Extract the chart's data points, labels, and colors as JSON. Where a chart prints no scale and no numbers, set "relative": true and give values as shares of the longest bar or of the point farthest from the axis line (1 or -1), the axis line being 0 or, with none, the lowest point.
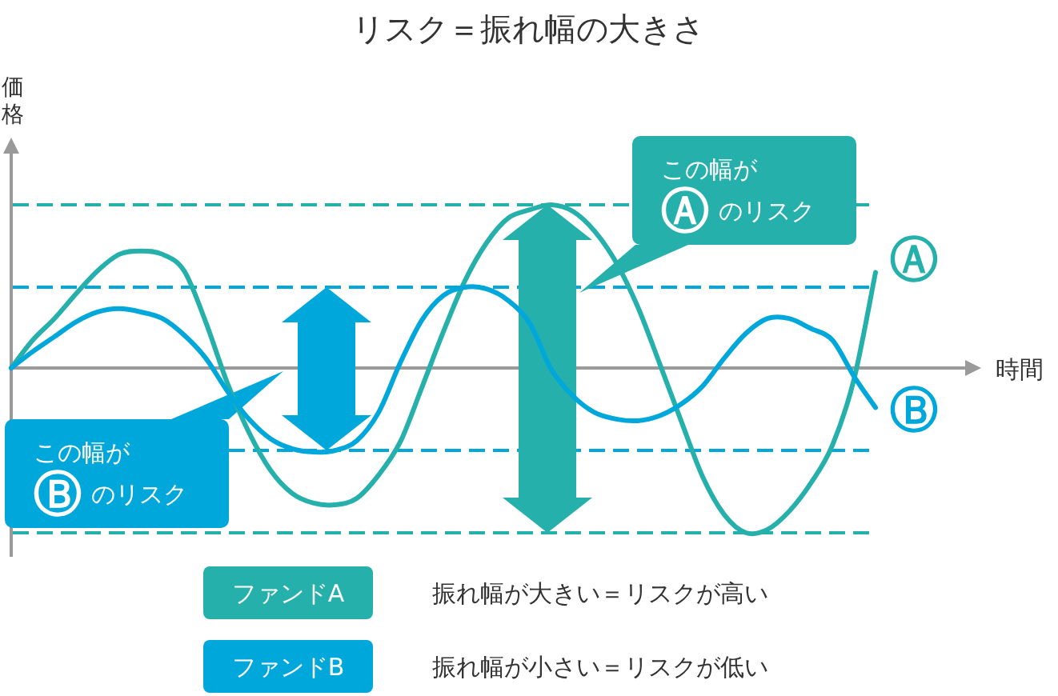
{
  "chart_data": {
    "type": "line",
    "title": "リスク＝振れ幅の大きさ",
    "xlabel": "時間",
    "ylabel": "価格",
    "relative": true,
    "categories": [
      null,
      null,
      null,
      null,
      null,
      null,
      null,
      null,
      null,
      null,
      null,
      null,
      null,
      null,
      null,
      null,
      null,
      null,
      null,
      null,
      null,
      null,
      null,
      null,
      null,
      null,
      null,
      null,
      null,
      null,
      null,
      null,
      null,
      null,
      null,
      null,
      null,
      null,
      null,
      null,
      null
    ],
    "series": [
      {
        "name": "ファンドA",
        "color": "#26b0ab",
        "values": [
          0,
          0.17,
          0.3,
          0.45,
          0.59,
          0.69,
          0.71,
          0.69,
          0.59,
          0.28,
          -0.09,
          -0.39,
          -0.62,
          -0.76,
          -0.82,
          -0.83,
          -0.79,
          -0.65,
          -0.45,
          -0.12,
          0.22,
          0.53,
          0.76,
          0.91,
          0.96,
          0.99,
          0.95,
          0.83,
          0.64,
          0.37,
          0.03,
          -0.32,
          -0.66,
          -0.89,
          -1.0,
          -0.98,
          -0.87,
          -0.7,
          -0.47,
          -0.07,
          0.58
        ]
      },
      {
        "name": "ファンドB",
        "color": "#00a7db",
        "values": [
          0,
          0.1,
          0.19,
          0.28,
          0.34,
          0.36,
          0.34,
          0.3,
          0.2,
          0.06,
          -0.14,
          -0.31,
          -0.43,
          -0.49,
          -0.51,
          -0.5,
          -0.44,
          -0.27,
          0.03,
          0.29,
          0.44,
          0.49,
          0.48,
          0.41,
          0.27,
          -0.01,
          -0.17,
          -0.27,
          -0.31,
          -0.32,
          -0.29,
          -0.22,
          -0.11,
          0.06,
          0.21,
          0.3,
          0.3,
          0.24,
          0.17,
          -0.05,
          -0.24
        ]
      }
    ],
    "ref_lines": [
      {
        "axis": "y",
        "value": 0.99,
        "color": "#26b0ab",
        "line_style": "dashed"
      },
      {
        "axis": "y",
        "value": 0.49,
        "color": "#00a7db",
        "line_style": "dashed"
      },
      {
        "axis": "y",
        "value": -0.5,
        "color": "#00a7db",
        "line_style": "dashed"
      },
      {
        "axis": "y",
        "value": -1.0,
        "color": "#26b0ab",
        "line_style": "dashed"
      }
    ],
    "legend": "bottom",
    "annotations": [
      "この幅が\nⒶのリスク",
      "この幅が\nⒷのリスク",
      "Ⓐ",
      "Ⓑ",
      "振れ幅が大きい＝リスクが高い",
      "振れ幅が小さい＝リスクが低い"
    ]
  }
}
